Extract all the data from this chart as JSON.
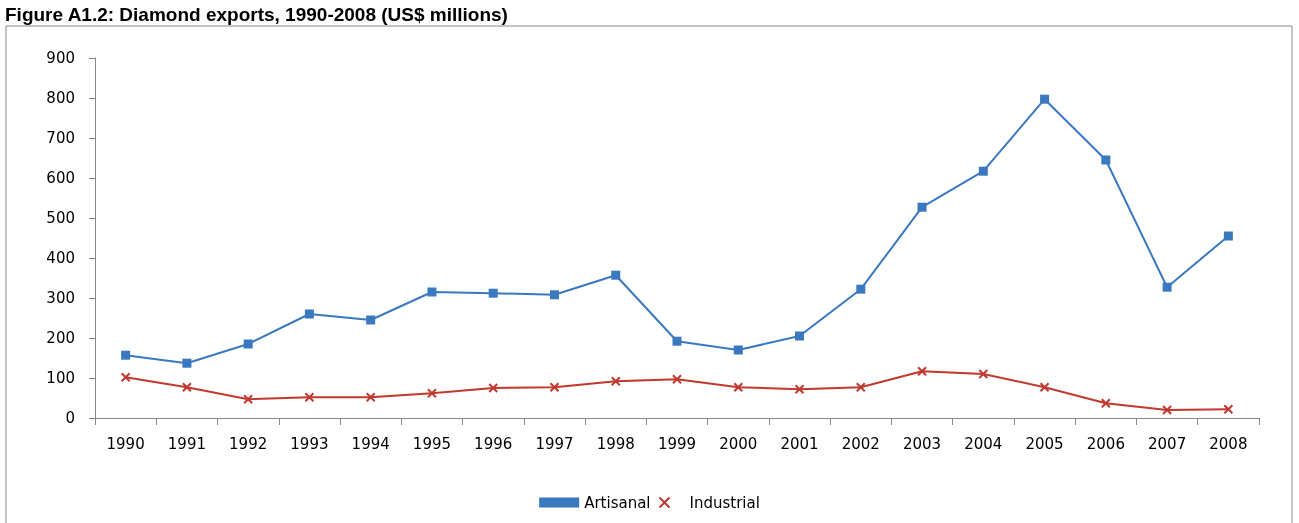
{
  "chart_data": {
    "type": "line",
    "title": "Figure A1.2: Diamond exports, 1990-2008 (US$ millions)",
    "categories": [
      "1990",
      "1991",
      "1992",
      "1993",
      "1994",
      "1995",
      "1996",
      "1997",
      "1998",
      "1999",
      "2000",
      "2001",
      "2002",
      "2003",
      "2004",
      "2005",
      "2006",
      "2007",
      "2008"
    ],
    "series": [
      {
        "name": "Artisanal",
        "color": "#3a78c0",
        "marker": "square",
        "values": [
          157,
          137,
          185,
          260,
          245,
          315,
          312,
          308,
          357,
          192,
          170,
          205,
          322,
          527,
          617,
          797,
          645,
          327,
          455
        ]
      },
      {
        "name": "Industrial",
        "color": "#c0392f",
        "marker": "cross",
        "values": [
          102,
          77,
          47,
          52,
          52,
          62,
          75,
          77,
          92,
          97,
          77,
          72,
          77,
          117,
          110,
          77,
          37,
          20,
          22
        ]
      }
    ],
    "ylim": [
      0,
      900
    ],
    "yticks": [
      0,
      100,
      200,
      300,
      400,
      500,
      600,
      700,
      800,
      900
    ],
    "grid": false,
    "legend": "bottom",
    "line_style": "solid"
  }
}
